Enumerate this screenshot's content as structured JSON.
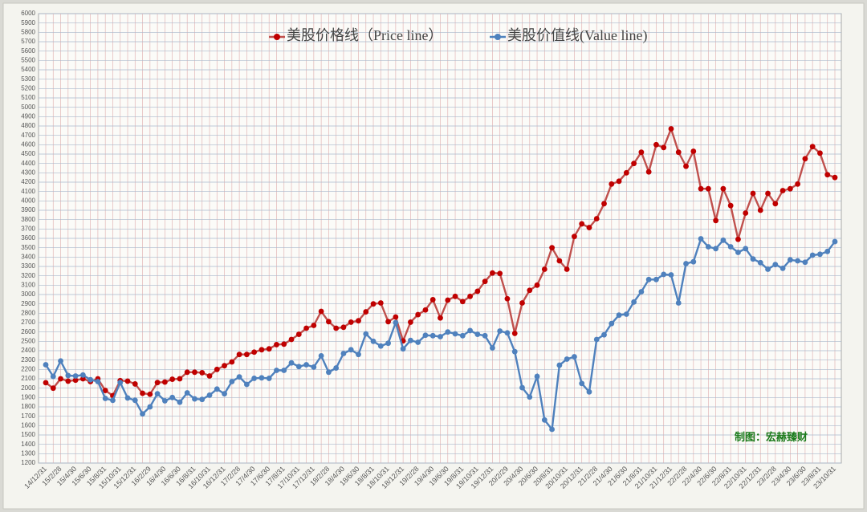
{
  "chart_data": {
    "type": "line",
    "legend": "top",
    "annotation": "制图：宏赫臻财",
    "grid": true,
    "ylim": [
      1200,
      6000
    ],
    "yticks": [
      1200,
      1300,
      1400,
      1500,
      1600,
      1700,
      1800,
      1900,
      2000,
      2100,
      2200,
      2300,
      2400,
      2500,
      2600,
      2700,
      2800,
      2900,
      3000,
      3100,
      3200,
      3300,
      3400,
      3500,
      3600,
      3700,
      3800,
      3900,
      4000,
      4100,
      4200,
      4300,
      4400,
      4500,
      4600,
      4700,
      4800,
      4900,
      5000,
      5100,
      5200,
      5300,
      5400,
      5500,
      5600,
      5700,
      5800,
      5900,
      6000
    ],
    "categories": [
      "14/12/31",
      null,
      "15/2/28",
      null,
      "15/4/30",
      null,
      "15/6/30",
      null,
      "15/8/31",
      null,
      "15/10/31",
      null,
      "15/12/31",
      null,
      "16/2/29",
      null,
      "16/4/30",
      null,
      "16/6/30",
      null,
      "16/8/31",
      null,
      "16/10/31",
      null,
      "16/12/31",
      null,
      "17/2/28",
      null,
      "17/4/30",
      null,
      "17/6/30",
      null,
      "17/8/31",
      null,
      "17/10/31",
      null,
      "17/12/31",
      null,
      "18/2/28",
      null,
      "18/4/30",
      null,
      "18/6/30",
      null,
      "18/8/31",
      null,
      "18/10/31",
      null,
      "18/12/31",
      null,
      "19/2/28",
      null,
      "19/4/30",
      null,
      "19/6/30",
      null,
      "19/8/31",
      null,
      "19/10/31",
      null,
      "19/12/31",
      null,
      "20/2/29",
      null,
      "20/4/30",
      null,
      "20/6/30",
      null,
      "20/8/31",
      null,
      "20/10/31",
      null,
      "20/12/31",
      null,
      "21/2/28",
      null,
      "21/4/30",
      null,
      "21/6/30",
      null,
      "21/8/31",
      null,
      "21/10/31",
      null,
      "21/12/31",
      null,
      "22/2/28",
      null,
      "22/4/30",
      null,
      "22/6/30",
      null,
      "22/8/31",
      null,
      "22/10/31",
      null,
      "22/12/31",
      null,
      "23/2/28",
      null,
      "23/4/30",
      null,
      "23/6/30",
      null,
      "23/8/31",
      null,
      "23/10/31"
    ],
    "series": [
      {
        "name": "美股价格线（Price line）",
        "color": "#c00000",
        "line_color": "#c0504d",
        "values": [
          2058,
          2000,
          2100,
          2075,
          2085,
          2100,
          2070,
          2100,
          1975,
          1920,
          2080,
          2075,
          2045,
          1945,
          1935,
          2060,
          2065,
          2095,
          2100,
          2170,
          2170,
          2165,
          2130,
          2200,
          2240,
          2280,
          2360,
          2360,
          2385,
          2410,
          2420,
          2465,
          2470,
          2520,
          2575,
          2640,
          2670,
          2820,
          2710,
          2640,
          2650,
          2705,
          2720,
          2815,
          2900,
          2910,
          2710,
          2760,
          2505,
          2705,
          2785,
          2835,
          2945,
          2750,
          2940,
          2980,
          2925,
          2980,
          3035,
          3140,
          3230,
          3225,
          2955,
          2585,
          2910,
          3045,
          3100,
          3270,
          3500,
          3360,
          3270,
          3620,
          3755,
          3715,
          3810,
          3970,
          4180,
          4210,
          4300,
          4400,
          4520,
          4310,
          4600,
          4570,
          4770,
          4520,
          4370,
          4530,
          4130,
          4130,
          3790,
          4130,
          3950,
          3590,
          3870,
          4080,
          3900,
          4080,
          3970,
          4110,
          4130,
          4180,
          4450,
          4580,
          4510,
          4280,
          4250
        ]
      },
      {
        "name": "美股价值线(Value line)",
        "color": "#4f81bd",
        "line_color": "#4f81bd",
        "values": [
          2250,
          2125,
          2290,
          2135,
          2130,
          2140,
          2090,
          2070,
          1890,
          1870,
          2060,
          1895,
          1870,
          1725,
          1800,
          1940,
          1865,
          1900,
          1850,
          1950,
          1885,
          1880,
          1925,
          1990,
          1940,
          2070,
          2120,
          2040,
          2105,
          2110,
          2105,
          2190,
          2190,
          2270,
          2230,
          2250,
          2225,
          2345,
          2170,
          2215,
          2370,
          2410,
          2360,
          2580,
          2500,
          2450,
          2480,
          2700,
          2420,
          2510,
          2490,
          2565,
          2560,
          2550,
          2600,
          2580,
          2560,
          2615,
          2575,
          2560,
          2430,
          2610,
          2590,
          2390,
          2005,
          1905,
          2125,
          1660,
          1560,
          2245,
          2310,
          2335,
          2050,
          1960,
          2520,
          2570,
          2690,
          2780,
          2790,
          2920,
          3030,
          3160,
          3160,
          3215,
          3210,
          2910,
          3330,
          3350,
          3595,
          3510,
          3490,
          3580,
          3510,
          3450,
          3490,
          3380,
          3340,
          3270,
          3320,
          3280,
          3370,
          3360,
          3345,
          3420,
          3430,
          3460,
          3565
        ]
      }
    ]
  }
}
